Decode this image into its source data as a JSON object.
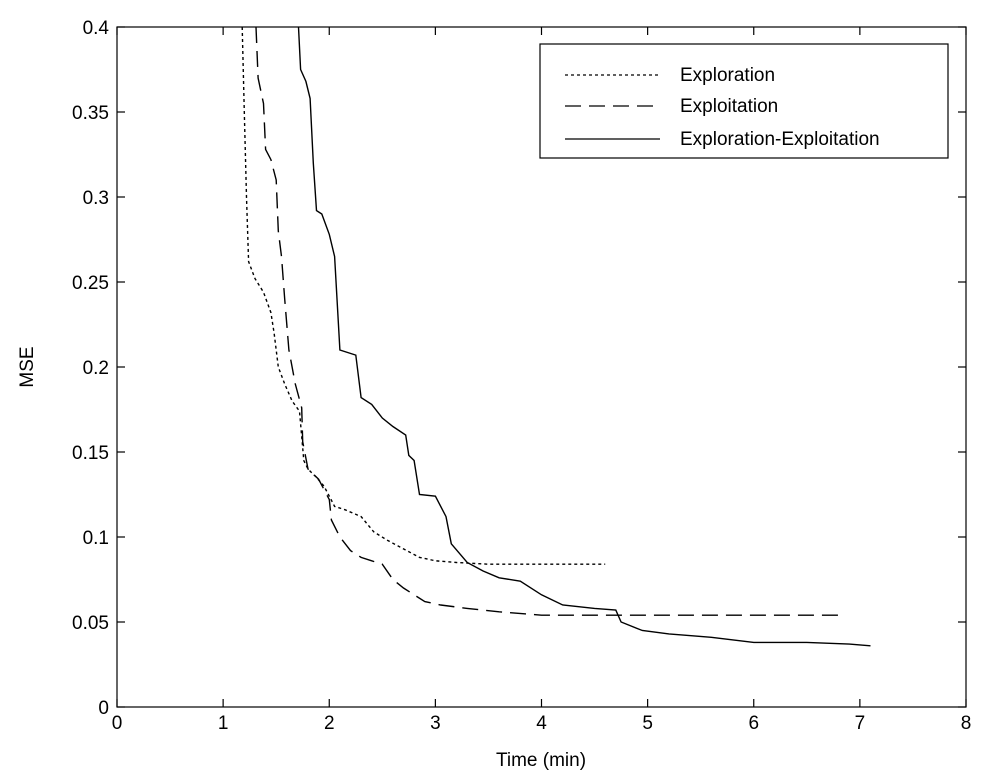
{
  "chart_data": {
    "type": "line",
    "xlabel": "Time (min)",
    "ylabel": "MSE",
    "xlim": [
      0,
      8
    ],
    "ylim": [
      0,
      0.4
    ],
    "xticks": [
      0,
      1,
      2,
      3,
      4,
      5,
      6,
      7,
      8
    ],
    "yticks": [
      0,
      0.05,
      0.1,
      0.15,
      0.2,
      0.25,
      0.3,
      0.35,
      0.4
    ],
    "xtick_labels": [
      "0",
      "1",
      "2",
      "3",
      "4",
      "5",
      "6",
      "7",
      "8"
    ],
    "ytick_labels": [
      "0",
      "0.05",
      "0.1",
      "0.15",
      "0.2",
      "0.25",
      "0.3",
      "0.35",
      "0.4"
    ],
    "grid": false,
    "legend_position": "top-right",
    "series": [
      {
        "name": "Exploration",
        "style": "dotted",
        "color": "#000000",
        "points": [
          [
            1.18,
            0.4
          ],
          [
            1.2,
            0.35
          ],
          [
            1.22,
            0.3
          ],
          [
            1.24,
            0.262
          ],
          [
            1.3,
            0.252
          ],
          [
            1.38,
            0.244
          ],
          [
            1.45,
            0.232
          ],
          [
            1.48,
            0.22
          ],
          [
            1.52,
            0.2
          ],
          [
            1.58,
            0.19
          ],
          [
            1.65,
            0.18
          ],
          [
            1.72,
            0.174
          ],
          [
            1.76,
            0.145
          ],
          [
            1.8,
            0.14
          ],
          [
            1.88,
            0.135
          ],
          [
            1.95,
            0.13
          ],
          [
            2.0,
            0.124
          ],
          [
            2.05,
            0.118
          ],
          [
            2.15,
            0.116
          ],
          [
            2.3,
            0.112
          ],
          [
            2.42,
            0.103
          ],
          [
            2.55,
            0.098
          ],
          [
            2.7,
            0.093
          ],
          [
            2.85,
            0.088
          ],
          [
            3.0,
            0.086
          ],
          [
            3.2,
            0.085
          ],
          [
            3.5,
            0.084
          ],
          [
            4.0,
            0.084
          ],
          [
            4.6,
            0.084
          ]
        ]
      },
      {
        "name": "Exploitation",
        "style": "dashed",
        "color": "#000000",
        "points": [
          [
            1.31,
            0.4
          ],
          [
            1.33,
            0.37
          ],
          [
            1.38,
            0.355
          ],
          [
            1.4,
            0.328
          ],
          [
            1.45,
            0.322
          ],
          [
            1.5,
            0.31
          ],
          [
            1.52,
            0.28
          ],
          [
            1.55,
            0.265
          ],
          [
            1.58,
            0.24
          ],
          [
            1.62,
            0.21
          ],
          [
            1.68,
            0.19
          ],
          [
            1.74,
            0.176
          ],
          [
            1.75,
            0.156
          ],
          [
            1.8,
            0.14
          ],
          [
            1.9,
            0.134
          ],
          [
            2.0,
            0.122
          ],
          [
            2.02,
            0.11
          ],
          [
            2.1,
            0.1
          ],
          [
            2.2,
            0.092
          ],
          [
            2.3,
            0.088
          ],
          [
            2.4,
            0.086
          ],
          [
            2.5,
            0.084
          ],
          [
            2.6,
            0.075
          ],
          [
            2.7,
            0.07
          ],
          [
            2.8,
            0.066
          ],
          [
            2.9,
            0.062
          ],
          [
            3.05,
            0.06
          ],
          [
            3.3,
            0.058
          ],
          [
            3.6,
            0.056
          ],
          [
            4.0,
            0.054
          ],
          [
            4.5,
            0.054
          ],
          [
            5.0,
            0.054
          ],
          [
            6.0,
            0.054
          ],
          [
            6.8,
            0.054
          ]
        ]
      },
      {
        "name": "Exploration-Exploitation",
        "style": "solid",
        "color": "#000000",
        "points": [
          [
            1.71,
            0.4
          ],
          [
            1.73,
            0.375
          ],
          [
            1.78,
            0.368
          ],
          [
            1.82,
            0.358
          ],
          [
            1.85,
            0.32
          ],
          [
            1.88,
            0.292
          ],
          [
            1.93,
            0.29
          ],
          [
            2.0,
            0.278
          ],
          [
            2.05,
            0.265
          ],
          [
            2.1,
            0.21
          ],
          [
            2.25,
            0.207
          ],
          [
            2.3,
            0.182
          ],
          [
            2.4,
            0.178
          ],
          [
            2.5,
            0.17
          ],
          [
            2.6,
            0.165
          ],
          [
            2.72,
            0.16
          ],
          [
            2.75,
            0.148
          ],
          [
            2.8,
            0.145
          ],
          [
            2.85,
            0.125
          ],
          [
            3.0,
            0.124
          ],
          [
            3.1,
            0.112
          ],
          [
            3.15,
            0.096
          ],
          [
            3.3,
            0.085
          ],
          [
            3.45,
            0.08
          ],
          [
            3.6,
            0.076
          ],
          [
            3.8,
            0.074
          ],
          [
            4.0,
            0.066
          ],
          [
            4.2,
            0.06
          ],
          [
            4.5,
            0.058
          ],
          [
            4.7,
            0.057
          ],
          [
            4.75,
            0.05
          ],
          [
            4.95,
            0.045
          ],
          [
            5.2,
            0.043
          ],
          [
            5.6,
            0.041
          ],
          [
            6.0,
            0.038
          ],
          [
            6.5,
            0.038
          ],
          [
            6.9,
            0.037
          ],
          [
            7.1,
            0.036
          ]
        ]
      }
    ]
  }
}
